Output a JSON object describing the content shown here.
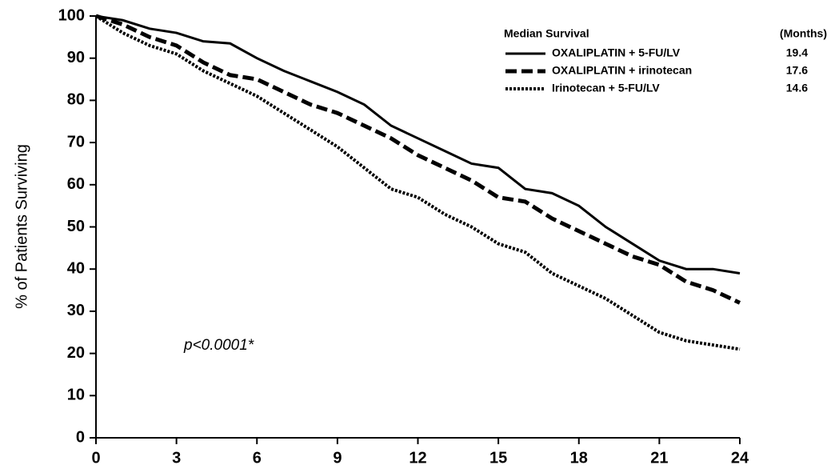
{
  "chart_data": {
    "type": "line",
    "y_label": "% of Patients Surviving",
    "legend_title": "Median Survival",
    "legend_value_title": "(Months)",
    "annotation": "p<0.0001*",
    "x": [
      0,
      1,
      2,
      3,
      4,
      5,
      6,
      7,
      8,
      9,
      10,
      11,
      12,
      13,
      14,
      15,
      16,
      17,
      18,
      19,
      20,
      21,
      22,
      23,
      24
    ],
    "series": [
      {
        "name": "OXALIPLATIN + 5-FU/LV",
        "median": 19.4,
        "color": "#000000",
        "dash": "solid",
        "values": [
          100,
          99,
          97,
          96,
          94,
          93.5,
          90,
          87,
          84.5,
          82,
          79,
          74,
          71,
          68,
          65,
          64,
          59,
          58,
          55,
          50,
          46,
          42,
          40,
          40,
          39
        ]
      },
      {
        "name": "OXALIPLATIN + irinotecan",
        "median": 17.6,
        "color": "#000000",
        "dash": "dashed",
        "values": [
          100,
          98,
          95,
          93,
          89,
          86,
          85,
          82,
          79,
          77,
          74,
          71,
          67,
          64,
          61,
          57,
          56,
          52,
          49,
          46,
          43,
          41,
          37,
          35,
          32
        ]
      },
      {
        "name": "Irinotecan + 5-FU/LV",
        "median": 14.6,
        "color": "#000000",
        "dash": "dotted",
        "values": [
          100,
          96,
          93,
          91,
          87,
          84,
          81,
          77,
          73,
          69,
          64,
          59,
          57,
          53,
          50,
          46,
          44,
          39,
          36,
          33,
          29,
          25,
          23,
          22,
          21
        ]
      }
    ],
    "xlim": [
      0,
      24
    ],
    "xticks": [
      0,
      3,
      6,
      9,
      12,
      15,
      18,
      21,
      24
    ],
    "ylim": [
      0,
      100
    ],
    "yticks": [
      0,
      10,
      20,
      30,
      40,
      50,
      60,
      70,
      80,
      90,
      100
    ],
    "grid": false
  }
}
